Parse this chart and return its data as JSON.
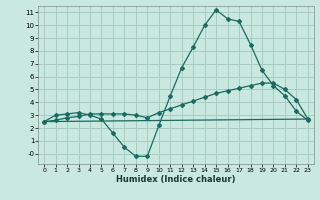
{
  "xlabel": "Humidex (Indice chaleur)",
  "bg_color": "#c8e8e0",
  "grid_color": "#a8ccc4",
  "line_color": "#1a6b60",
  "xlim": [
    -0.5,
    23.5
  ],
  "ylim": [
    -0.8,
    11.5
  ],
  "xticks": [
    0,
    1,
    2,
    3,
    4,
    5,
    6,
    7,
    8,
    9,
    10,
    11,
    12,
    13,
    14,
    15,
    16,
    17,
    18,
    19,
    20,
    21,
    22,
    23
  ],
  "yticks": [
    0,
    1,
    2,
    3,
    4,
    5,
    6,
    7,
    8,
    9,
    10,
    11
  ],
  "ytick_labels": [
    "-0",
    "1",
    "2",
    "3",
    "4",
    "5",
    "6",
    "7",
    "8",
    "9",
    "10",
    "11"
  ],
  "line1_x": [
    0,
    1,
    2,
    3,
    4,
    5,
    6,
    7,
    8,
    9,
    10,
    11,
    12,
    13,
    14,
    15,
    16,
    17,
    18,
    19,
    20,
    21,
    22,
    23
  ],
  "line1_y": [
    2.5,
    3.0,
    3.1,
    3.2,
    3.0,
    2.7,
    1.6,
    0.5,
    -0.2,
    -0.2,
    2.2,
    4.5,
    6.7,
    8.3,
    10.0,
    11.2,
    10.5,
    10.3,
    8.5,
    6.5,
    5.3,
    4.5,
    3.3,
    2.6
  ],
  "line2_x": [
    0,
    1,
    2,
    3,
    4,
    5,
    6,
    7,
    8,
    9,
    10,
    11,
    12,
    13,
    14,
    15,
    16,
    17,
    18,
    19,
    20,
    21,
    22,
    23
  ],
  "line2_y": [
    2.5,
    2.6,
    2.8,
    2.9,
    3.1,
    3.1,
    3.1,
    3.1,
    3.0,
    2.8,
    3.2,
    3.5,
    3.8,
    4.1,
    4.4,
    4.7,
    4.9,
    5.1,
    5.3,
    5.5,
    5.5,
    5.0,
    4.2,
    2.7
  ],
  "line3_x": [
    0,
    23
  ],
  "line3_y": [
    2.5,
    2.7
  ]
}
